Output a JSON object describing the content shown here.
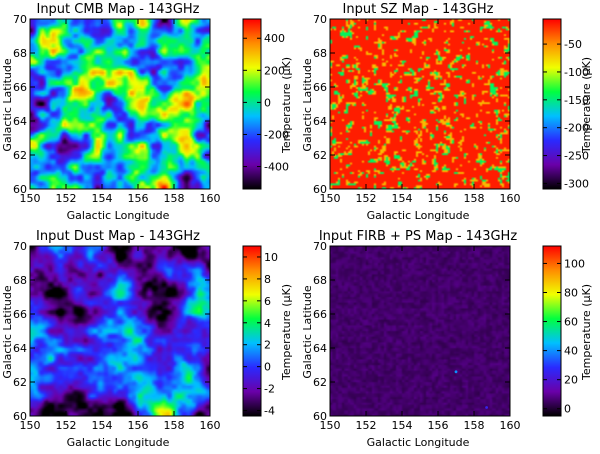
{
  "chart_data": [
    {
      "type": "heatmap",
      "title": "Input CMB Map - 143GHz",
      "xlabel": "Galactic Longitude",
      "ylabel": "Galactic Latitude",
      "colorbar_label": "Temperature (µK)",
      "xlim": [
        150,
        160
      ],
      "ylim": [
        60,
        70
      ],
      "xticks": [
        "150",
        "152",
        "154",
        "156",
        "158",
        "160"
      ],
      "yticks": [
        "60",
        "62",
        "64",
        "66",
        "68",
        "70"
      ],
      "colorbar_range": [
        -540,
        520
      ],
      "colorbar_ticks": [
        -400,
        -200,
        0,
        200,
        400
      ],
      "colorbar_tick_labels": [
        "-400",
        "-200",
        "0",
        "200",
        "400"
      ],
      "colormap": [
        "#000000",
        "#6a00a8",
        "#2a2aff",
        "#00bfff",
        "#00ff40",
        "#f0ff00",
        "#ff8c00",
        "#ff0000"
      ],
      "field": "cmb",
      "seed": 11
    },
    {
      "type": "heatmap",
      "title": "Input SZ Map - 143GHz",
      "xlabel": "Galactic Longitude",
      "ylabel": "Galactic Latitude",
      "colorbar_label": "Temperature (µK)",
      "xlim": [
        150,
        160
      ],
      "ylim": [
        60,
        70
      ],
      "xticks": [
        "150",
        "152",
        "154",
        "156",
        "158",
        "160"
      ],
      "yticks": [
        "60",
        "62",
        "64",
        "66",
        "68",
        "70"
      ],
      "colorbar_range": [
        -310,
        -5
      ],
      "colorbar_ticks": [
        -300,
        -250,
        -200,
        -150,
        -100,
        -50
      ],
      "colorbar_tick_labels": [
        "-300",
        "-250",
        "-200",
        "-150",
        "-100",
        "-50"
      ],
      "colormap": [
        "#000000",
        "#6a00a8",
        "#2a2aff",
        "#00bfff",
        "#00ff40",
        "#f0ff00",
        "#ff8c00",
        "#ff0000"
      ],
      "field": "sz",
      "seed": 23
    },
    {
      "type": "heatmap",
      "title": "Input Dust Map - 143GHz",
      "xlabel": "Galactic Longitude",
      "ylabel": "Galactic Latitude",
      "colorbar_label": "Temperature (µK)",
      "xlim": [
        150,
        160
      ],
      "ylim": [
        60,
        70
      ],
      "xticks": [
        "150",
        "152",
        "154",
        "156",
        "158",
        "160"
      ],
      "yticks": [
        "60",
        "62",
        "64",
        "66",
        "68",
        "70"
      ],
      "colorbar_range": [
        -4.5,
        11
      ],
      "colorbar_ticks": [
        -4,
        -2,
        0,
        2,
        4,
        6,
        8,
        10
      ],
      "colorbar_tick_labels": [
        "-4",
        "-2",
        "0",
        "2",
        "4",
        "6",
        "8",
        "10"
      ],
      "colormap": [
        "#000000",
        "#6a00a8",
        "#2a2aff",
        "#00bfff",
        "#00ff40",
        "#f0ff00",
        "#ff8c00",
        "#ff0000"
      ],
      "field": "dust",
      "seed": 37
    },
    {
      "type": "heatmap",
      "title": "Input FIRB + PS Map - 143GHz",
      "xlabel": "Galactic Longitude",
      "ylabel": "Galactic Latitude",
      "colorbar_label": "Temperature (µK)",
      "xlim": [
        150,
        160
      ],
      "ylim": [
        60,
        70
      ],
      "xticks": [
        "150",
        "152",
        "154",
        "156",
        "158",
        "160"
      ],
      "yticks": [
        "60",
        "62",
        "64",
        "66",
        "68",
        "70"
      ],
      "colorbar_range": [
        -5,
        112
      ],
      "colorbar_ticks": [
        0,
        20,
        40,
        60,
        80,
        100
      ],
      "colorbar_tick_labels": [
        "0",
        "20",
        "40",
        "60",
        "80",
        "100"
      ],
      "colormap": [
        "#000000",
        "#6a00a8",
        "#2a2aff",
        "#00bfff",
        "#00ff40",
        "#f0ff00",
        "#ff8c00",
        "#ff0000"
      ],
      "field": "firb",
      "seed": 53,
      "point_sources": [
        {
          "lon": 157.0,
          "lat": 62.6,
          "value": 40
        },
        {
          "lon": 158.7,
          "lat": 60.5,
          "value": 25
        }
      ]
    }
  ]
}
